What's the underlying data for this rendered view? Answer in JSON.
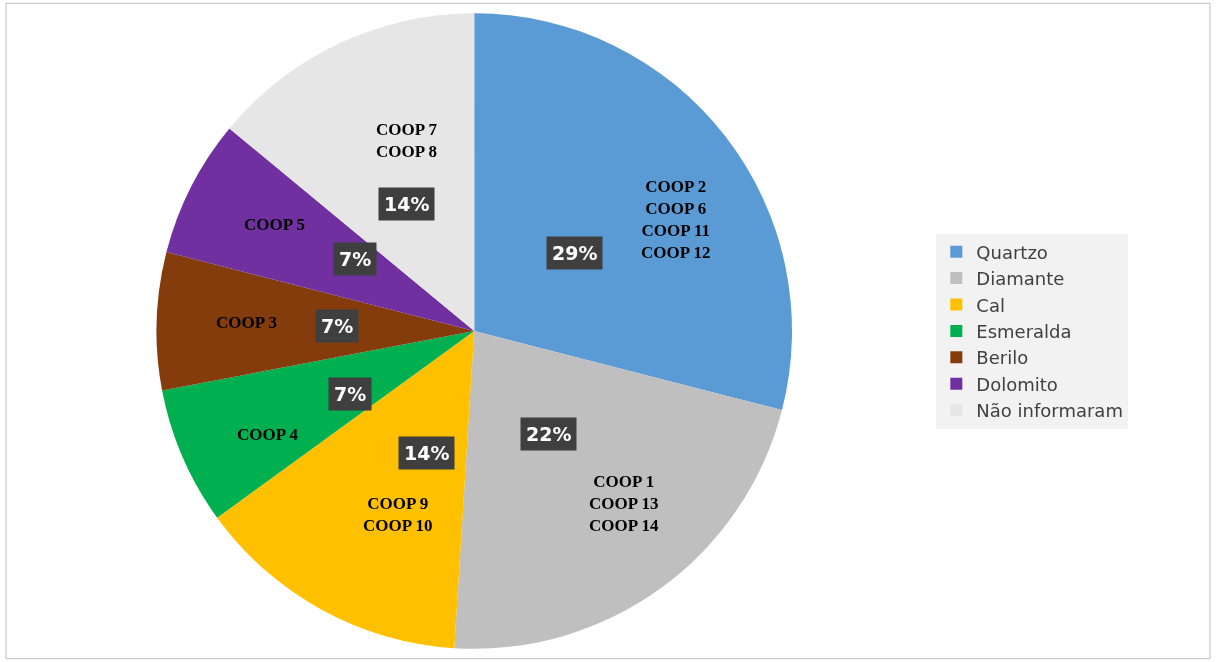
{
  "chart_data": {
    "type": "pie",
    "categories": [
      "Quartzo",
      "Diamante",
      "Cal",
      "Esmeralda",
      "Berilo",
      "Dolomito",
      "Não informaram"
    ],
    "values": [
      29,
      22,
      14,
      7,
      7,
      7,
      14
    ],
    "colors": [
      "#5b9bd5",
      "#bfbfbf",
      "#ffc000",
      "#00b050",
      "#843c0c",
      "#7030a0",
      "#e7e6e6"
    ],
    "value_labels": [
      "29%",
      "22%",
      "14%",
      "7%",
      "7%",
      "7%",
      "14%"
    ],
    "annotations": [
      "COOP 2\nCOOP 6\nCOOP 11\nCOOP 12",
      "COOP 1\nCOOP 13\nCOOP 14",
      "COOP 9\nCOOP 10",
      "COOP 4",
      "COOP 3",
      "COOP 5",
      "COOP 7\nCOOP 8"
    ],
    "legend": "right"
  }
}
